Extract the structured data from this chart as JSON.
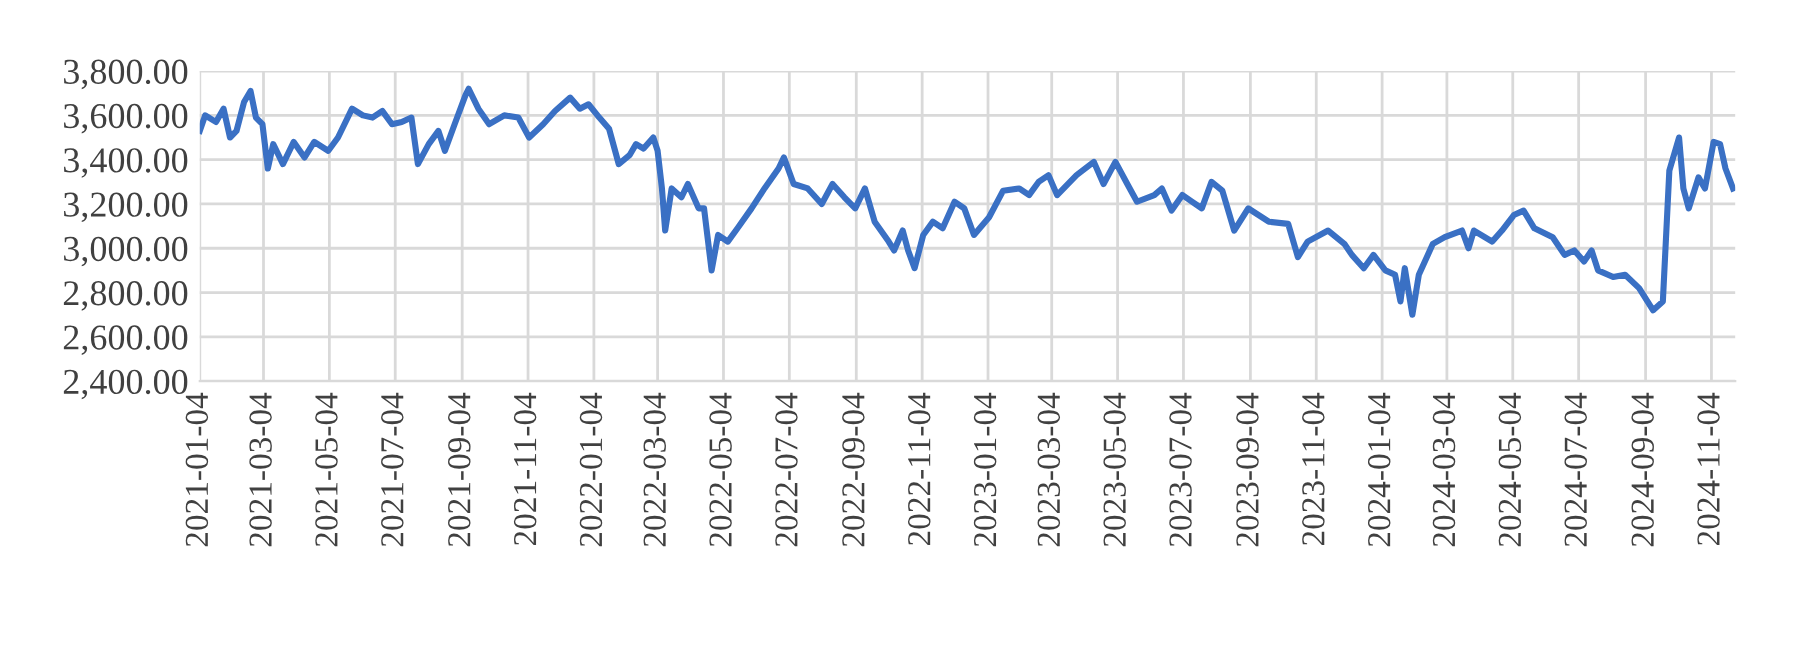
{
  "chart_data": {
    "type": "line",
    "x": [
      "2021-01-04",
      "2021-01-09",
      "2021-01-19",
      "2021-01-26",
      "2021-02-01",
      "2021-02-07",
      "2021-02-14",
      "2021-02-20",
      "2021-02-25",
      "2021-03-03",
      "2021-03-08",
      "2021-03-13",
      "2021-03-22",
      "2021-04-01",
      "2021-04-11",
      "2021-04-20",
      "2021-05-03",
      "2021-05-12",
      "2021-05-25",
      "2021-06-04",
      "2021-06-13",
      "2021-06-22",
      "2021-07-01",
      "2021-07-10",
      "2021-07-19",
      "2021-07-25",
      "2021-08-04",
      "2021-08-13",
      "2021-08-19",
      "2021-08-28",
      "2021-09-07",
      "2021-09-10",
      "2021-09-19",
      "2021-09-29",
      "2021-10-13",
      "2021-10-26",
      "2021-11-05",
      "2021-11-18",
      "2021-11-29",
      "2021-12-13",
      "2021-12-22",
      "2021-12-30",
      "2022-01-09",
      "2022-01-18",
      "2022-01-27",
      "2022-02-06",
      "2022-02-12",
      "2022-02-19",
      "2022-02-28",
      "2022-03-04",
      "2022-03-08",
      "2022-03-11",
      "2022-03-17",
      "2022-03-26",
      "2022-04-01",
      "2022-04-11",
      "2022-04-16",
      "2022-04-23",
      "2022-04-29",
      "2022-05-08",
      "2022-05-17",
      "2022-05-30",
      "2022-06-11",
      "2022-06-24",
      "2022-06-29",
      "2022-07-08",
      "2022-07-21",
      "2022-08-03",
      "2022-08-13",
      "2022-08-24",
      "2022-09-03",
      "2022-09-12",
      "2022-09-21",
      "2022-10-04",
      "2022-10-09",
      "2022-10-17",
      "2022-10-22",
      "2022-10-28",
      "2022-11-05",
      "2022-11-14",
      "2022-11-23",
      "2022-12-04",
      "2022-12-13",
      "2022-12-22",
      "2023-01-05",
      "2023-01-18",
      "2023-02-02",
      "2023-02-11",
      "2023-02-20",
      "2023-03-01",
      "2023-03-09",
      "2023-03-27",
      "2023-04-12",
      "2023-04-21",
      "2023-05-02",
      "2023-05-13",
      "2023-05-22",
      "2023-06-07",
      "2023-06-14",
      "2023-06-23",
      "2023-07-03",
      "2023-07-12",
      "2023-07-21",
      "2023-07-30",
      "2023-08-09",
      "2023-08-20",
      "2023-09-02",
      "2023-09-21",
      "2023-10-09",
      "2023-10-18",
      "2023-10-27",
      "2023-11-15",
      "2023-11-30",
      "2023-12-07",
      "2023-12-18",
      "2023-12-27",
      "2024-01-07",
      "2024-01-16",
      "2024-01-21",
      "2024-01-25",
      "2024-02-01",
      "2024-02-07",
      "2024-02-20",
      "2024-03-02",
      "2024-03-18",
      "2024-03-24",
      "2024-03-29",
      "2024-04-15",
      "2024-04-24",
      "2024-05-05",
      "2024-05-14",
      "2024-05-24",
      "2024-06-10",
      "2024-06-21",
      "2024-06-30",
      "2024-07-09",
      "2024-07-16",
      "2024-07-22",
      "2024-08-05",
      "2024-08-16",
      "2024-08-29",
      "2024-09-11",
      "2024-09-20",
      "2024-09-26",
      "2024-10-05",
      "2024-10-09",
      "2024-10-14",
      "2024-10-23",
      "2024-10-29",
      "2024-11-06",
      "2024-11-12",
      "2024-11-17",
      "2024-11-24"
    ],
    "series": [
      {
        "color": "#3a70c4",
        "values": [
          3530,
          3600,
          3570,
          3630,
          3500,
          3530,
          3660,
          3710,
          3590,
          3560,
          3360,
          3470,
          3380,
          3480,
          3410,
          3480,
          3440,
          3500,
          3630,
          3600,
          3590,
          3620,
          3560,
          3570,
          3590,
          3380,
          3470,
          3530,
          3440,
          3560,
          3690,
          3720,
          3630,
          3560,
          3600,
          3590,
          3500,
          3560,
          3620,
          3680,
          3630,
          3650,
          3590,
          3540,
          3380,
          3420,
          3470,
          3450,
          3500,
          3440,
          3270,
          3080,
          3270,
          3230,
          3290,
          3180,
          3180,
          2900,
          3060,
          3030,
          3090,
          3180,
          3270,
          3360,
          3410,
          3290,
          3270,
          3200,
          3290,
          3230,
          3180,
          3270,
          3120,
          3030,
          2990,
          3080,
          2990,
          2910,
          3060,
          3120,
          3090,
          3210,
          3180,
          3060,
          3140,
          3260,
          3270,
          3240,
          3300,
          3330,
          3240,
          3330,
          3390,
          3290,
          3390,
          3290,
          3210,
          3240,
          3270,
          3170,
          3240,
          3210,
          3180,
          3300,
          3260,
          3080,
          3180,
          3120,
          3110,
          2960,
          3030,
          3080,
          3020,
          2970,
          2910,
          2970,
          2900,
          2880,
          2760,
          2910,
          2700,
          2880,
          3020,
          3050,
          3080,
          3000,
          3080,
          3030,
          3080,
          3150,
          3170,
          3090,
          3050,
          2970,
          2990,
          2940,
          2990,
          2900,
          2870,
          2880,
          2820,
          2720,
          2760,
          3350,
          3500,
          3270,
          3180,
          3320,
          3270,
          3480,
          3470,
          3360,
          3270
        ]
      }
    ],
    "xlim": [
      "2021-01-04",
      "2024-11-26"
    ],
    "xticks": [
      "2021-01-04",
      "2021-03-04",
      "2021-05-04",
      "2021-07-04",
      "2021-09-04",
      "2021-11-04",
      "2022-01-04",
      "2022-03-04",
      "2022-05-04",
      "2022-07-04",
      "2022-09-04",
      "2022-11-04",
      "2023-01-04",
      "2023-03-04",
      "2023-05-04",
      "2023-07-04",
      "2023-09-04",
      "2023-11-04",
      "2024-01-04",
      "2024-03-04",
      "2024-05-04",
      "2024-07-04",
      "2024-09-04",
      "2024-11-04"
    ],
    "ylim": [
      2400,
      3800
    ],
    "yticks": [
      {
        "value": 2400,
        "label": "2,400.00"
      },
      {
        "value": 2600,
        "label": "2,600.00"
      },
      {
        "value": 2800,
        "label": "2,800.00"
      },
      {
        "value": 3000,
        "label": "3,000.00"
      },
      {
        "value": 3200,
        "label": "3,200.00"
      },
      {
        "value": 3400,
        "label": "3,400.00"
      },
      {
        "value": 3600,
        "label": "3,600.00"
      },
      {
        "value": 3800,
        "label": "3,800.00"
      }
    ],
    "grid": true,
    "marker": "none",
    "line_style": "solid",
    "legend": false
  }
}
